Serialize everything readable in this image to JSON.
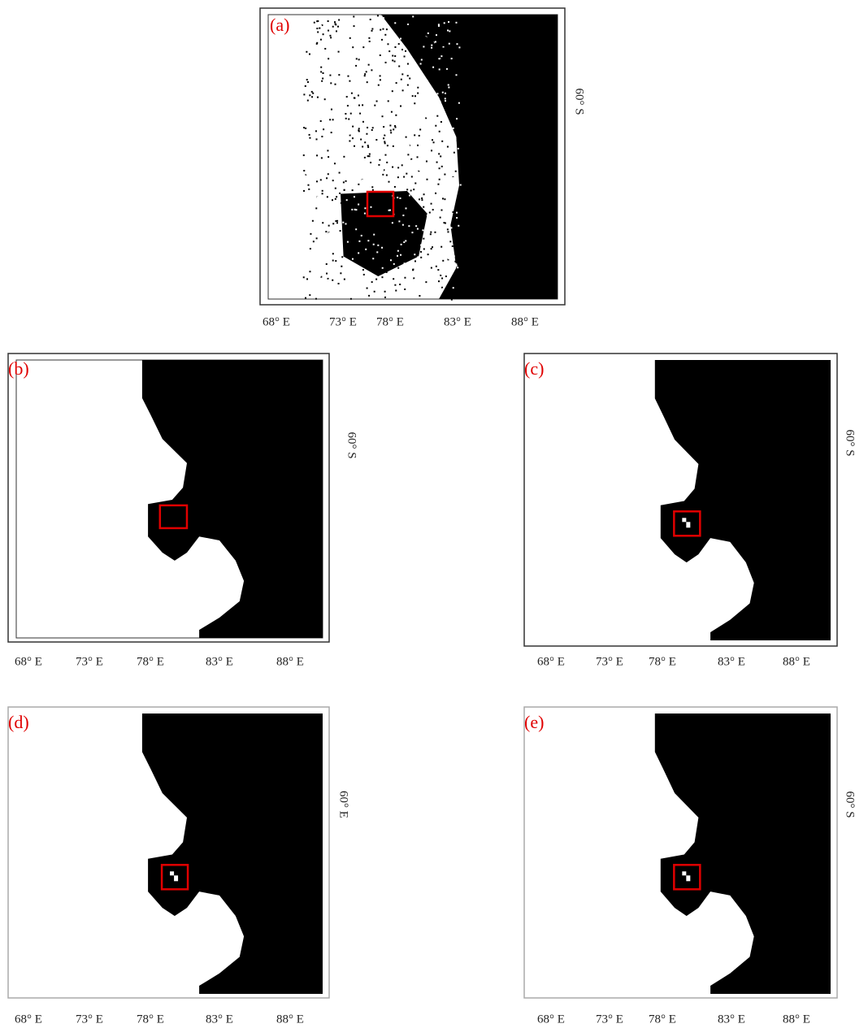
{
  "panels": [
    {
      "label": "(a)",
      "xticks": [
        "68° E",
        "73° E",
        "78° E",
        "83° E",
        "88° E"
      ],
      "ylabel": "60° S"
    },
    {
      "label": "(b)",
      "xticks": [
        "68° E",
        "73° E",
        "78° E",
        "83° E",
        "88° E"
      ],
      "ylabel": "60° S"
    },
    {
      "label": "(c)",
      "xticks": [
        "68° E",
        "73° E",
        "78° E",
        "83° E",
        "88° E"
      ],
      "ylabel": "60° S"
    },
    {
      "label": "(d)",
      "xticks": [
        "68° E",
        "73° E",
        "78° E",
        "83° E",
        "88° E"
      ],
      "ylabel": "60° E"
    },
    {
      "label": "(e)",
      "xticks": [
        "68° E",
        "73° E",
        "78° E",
        "83° E",
        "88° E"
      ],
      "ylabel": "60° S"
    }
  ]
}
